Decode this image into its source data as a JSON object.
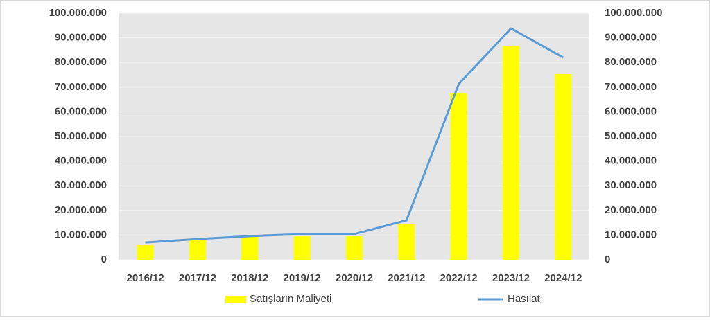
{
  "chart_data": {
    "type": "bar-line",
    "categories": [
      "2016/12",
      "2017/12",
      "2018/12",
      "2019/12",
      "2020/12",
      "2021/12",
      "2022/12",
      "2023/12",
      "2024/12"
    ],
    "series": [
      {
        "name": "Satışların Maliyeti",
        "type": "bar",
        "color": "#ffff00",
        "values": [
          6200000,
          8100000,
          9300000,
          9500000,
          9500000,
          14600000,
          67700000,
          86800000,
          75300000
        ]
      },
      {
        "name": "Hasılat",
        "type": "line",
        "axis": "y2",
        "color": "#5b9bd5",
        "values": [
          7000000,
          8400000,
          9600000,
          10400000,
          10400000,
          16000000,
          71300000,
          93800000,
          82000000
        ]
      }
    ],
    "ylim": [
      0,
      100000000
    ],
    "yticks": [
      0,
      {
        "value": 10000000,
        "label": "10.000.000"
      },
      {
        "value": 20000000,
        "label": "20.000.000"
      },
      {
        "value": 30000000,
        "label": "30.000.000"
      },
      {
        "value": 40000000,
        "label": "40.000.000"
      },
      {
        "value": 50000000,
        "label": "50.000.000"
      },
      {
        "value": 60000000,
        "label": "60.000.000"
      },
      {
        "value": 70000000,
        "label": "70.000.000"
      },
      {
        "value": 80000000,
        "label": "80.000.000"
      },
      {
        "value": 90000000,
        "label": "90.000.000"
      },
      {
        "value": 100000000,
        "label": "100.000.000"
      }
    ],
    "y2lim": [
      0,
      100000000
    ],
    "y2ticks": [
      0,
      {
        "value": 10000000,
        "label": "10.000.000"
      },
      {
        "value": 20000000,
        "label": "20.000.000"
      },
      {
        "value": 30000000,
        "label": "30.000.000"
      },
      {
        "value": 40000000,
        "label": "40.000.000"
      },
      {
        "value": 50000000,
        "label": "50.000.000"
      },
      {
        "value": 60000000,
        "label": "60.000.000"
      },
      {
        "value": 70000000,
        "label": "70.000.000"
      },
      {
        "value": 80000000,
        "label": "80.000.000"
      },
      {
        "value": 90000000,
        "label": "90.000.000"
      },
      {
        "value": 100000000,
        "label": "100.000.000"
      }
    ],
    "grid": true,
    "legend": "bottom"
  }
}
